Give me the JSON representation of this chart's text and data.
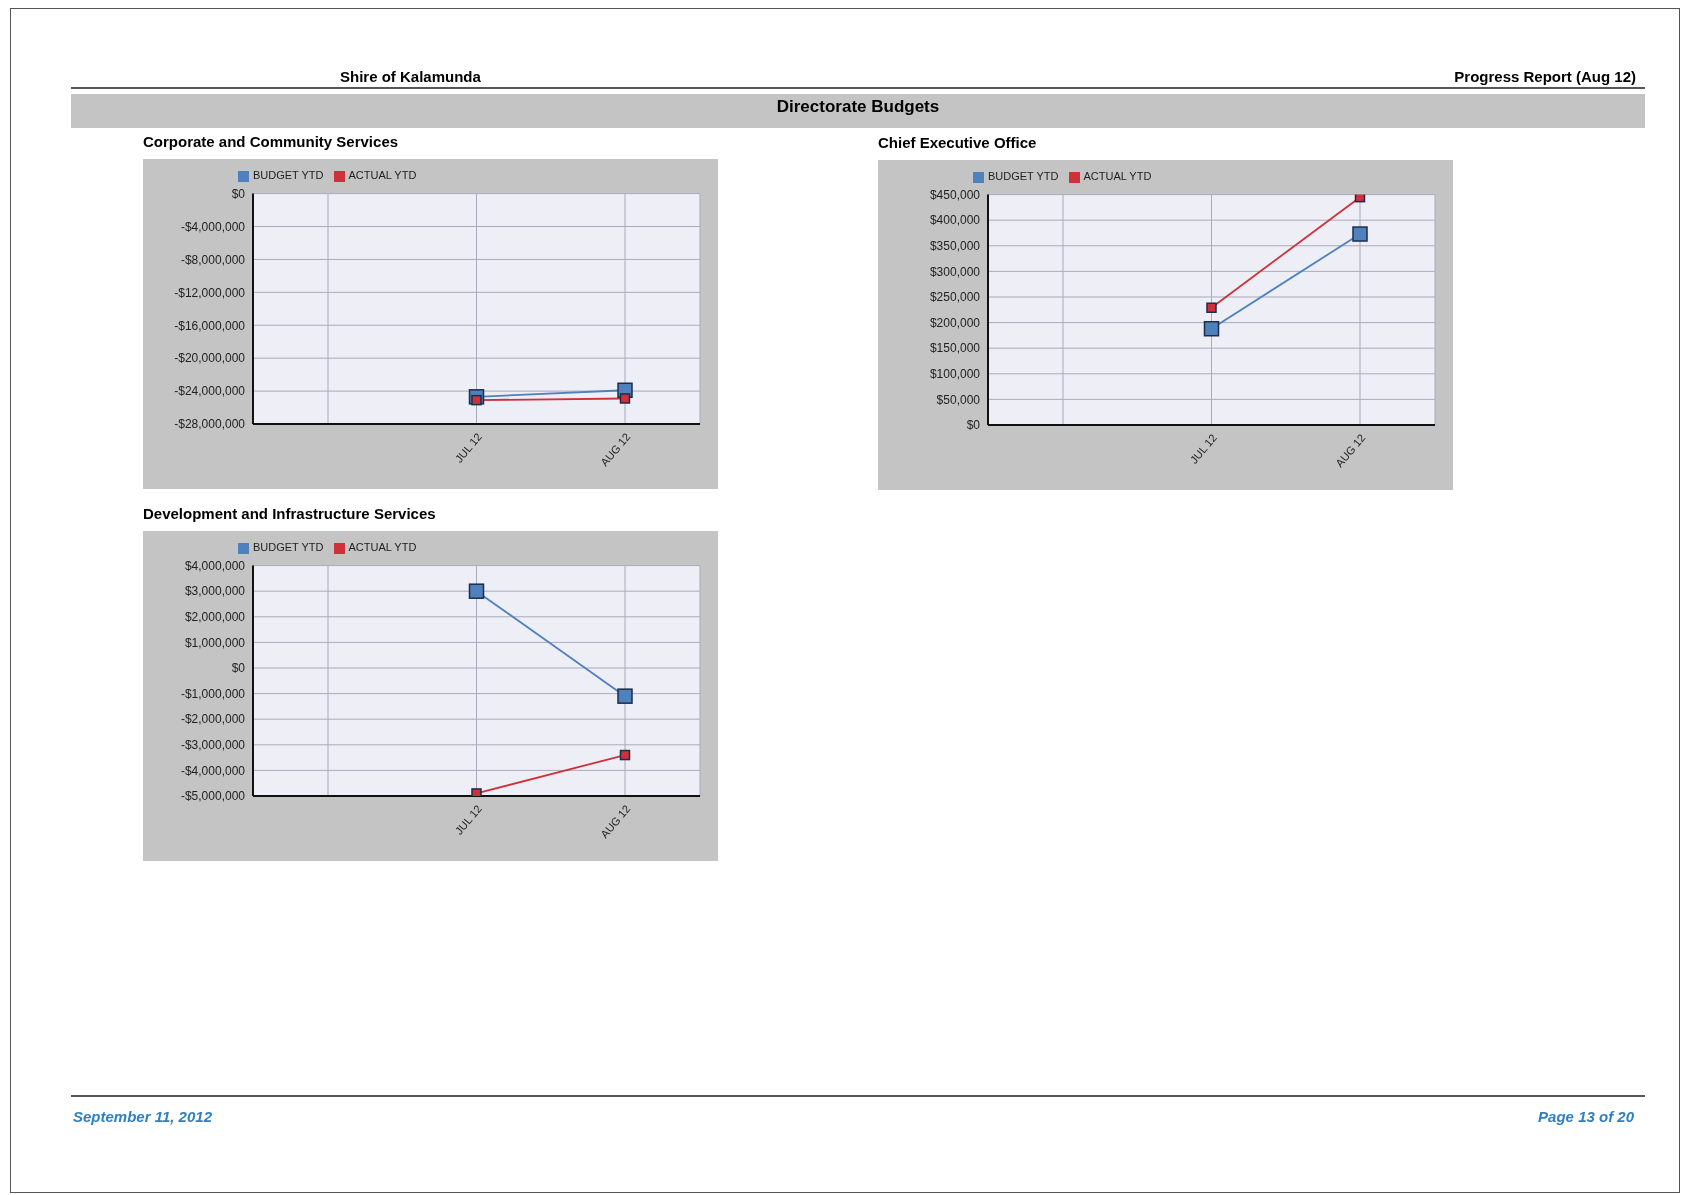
{
  "chart_data": [
    {
      "type": "line",
      "title": "Corporate and Community Services",
      "annotations": [
        "Shire of Kalamunda",
        "Progress Report (Aug 12)",
        "Directorate Budgets",
        "September 11, 2012",
        "Page 13 of 20"
      ],
      "categories": [
        null,
        "JUL 12",
        "AUG 12"
      ],
      "series": [
        {
          "name": "BUDGET YTD",
          "color": "#4f81bd",
          "marker": "square",
          "values": [
            null,
            -24700000,
            -23900000
          ]
        },
        {
          "name": "ACTUAL YTD",
          "color": "#d0303a",
          "marker": "square",
          "values": [
            null,
            -25100000,
            -24900000
          ]
        }
      ],
      "ylim": [
        -28000000,
        0
      ],
      "yticks": [
        {
          "value": -28000000,
          "label": "-$28,000,000"
        },
        {
          "value": -24000000,
          "label": "-$24,000,000"
        },
        {
          "value": -20000000,
          "label": "-$20,000,000"
        },
        {
          "value": -16000000,
          "label": "-$16,000,000"
        },
        {
          "value": -12000000,
          "label": "-$12,000,000"
        },
        {
          "value": -8000000,
          "label": "-$8,000,000"
        },
        {
          "value": -4000000,
          "label": "-$4,000,000"
        },
        {
          "value": 0,
          "label": "$0"
        }
      ],
      "grid": true,
      "legend": "top"
    },
    {
      "type": "line",
      "title": "Chief Executive Office",
      "categories": [
        null,
        "JUL 12",
        "AUG 12"
      ],
      "series": [
        {
          "name": "BUDGET YTD",
          "color": "#4f81bd",
          "marker": "square",
          "values": [
            null,
            188000,
            373000
          ]
        },
        {
          "name": "ACTUAL YTD",
          "color": "#d0303a",
          "marker": "square",
          "values": [
            null,
            229000,
            445000
          ]
        }
      ],
      "ylim": [
        0,
        450000
      ],
      "yticks": [
        {
          "value": 0,
          "label": "$0"
        },
        {
          "value": 50000,
          "label": "$50,000"
        },
        {
          "value": 100000,
          "label": "$100,000"
        },
        {
          "value": 150000,
          "label": "$150,000"
        },
        {
          "value": 200000,
          "label": "$200,000"
        },
        {
          "value": 250000,
          "label": "$250,000"
        },
        {
          "value": 300000,
          "label": "$300,000"
        },
        {
          "value": 350000,
          "label": "$350,000"
        },
        {
          "value": 400000,
          "label": "$400,000"
        },
        {
          "value": 450000,
          "label": "$450,000"
        }
      ],
      "grid": true,
      "legend": "top"
    },
    {
      "type": "line",
      "title": "Development and Infrastructure Services",
      "categories": [
        null,
        "JUL 12",
        "AUG 12"
      ],
      "series": [
        {
          "name": "BUDGET YTD",
          "color": "#4f81bd",
          "marker": "square",
          "values": [
            null,
            3000000,
            -1100000
          ]
        },
        {
          "name": "ACTUAL YTD",
          "color": "#d0303a",
          "marker": "square",
          "values": [
            null,
            -4900000,
            -3400000
          ]
        }
      ],
      "ylim": [
        -5000000,
        4000000
      ],
      "yticks": [
        {
          "value": -5000000,
          "label": "-$5,000,000"
        },
        {
          "value": -4000000,
          "label": "-$4,000,000"
        },
        {
          "value": -3000000,
          "label": "-$3,000,000"
        },
        {
          "value": -2000000,
          "label": "-$2,000,000"
        },
        {
          "value": -1000000,
          "label": "-$1,000,000"
        },
        {
          "value": 0,
          "label": "$0"
        },
        {
          "value": 1000000,
          "label": "$1,000,000"
        },
        {
          "value": 2000000,
          "label": "$2,000,000"
        },
        {
          "value": 3000000,
          "label": "$3,000,000"
        },
        {
          "value": 4000000,
          "label": "$4,000,000"
        }
      ],
      "grid": true,
      "legend": "top"
    }
  ]
}
